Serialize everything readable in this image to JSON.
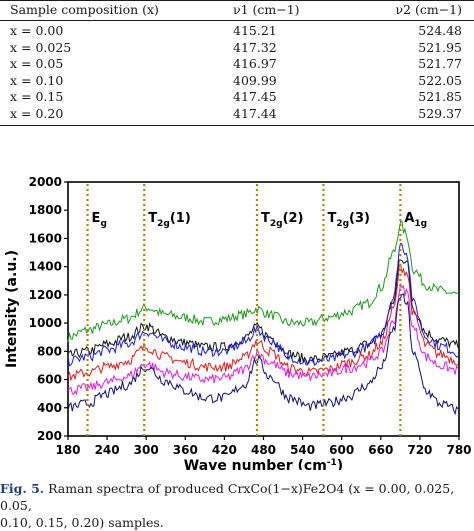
{
  "table": {
    "headers": [
      "Sample composition (x)",
      "ν1 (cm−1)",
      "ν2 (cm−1)"
    ],
    "rows": [
      [
        "x = 0.00",
        "415.21",
        "524.48"
      ],
      [
        "x = 0.025",
        "417.32",
        "521.95"
      ],
      [
        "x = 0.05",
        "416.97",
        "521.77"
      ],
      [
        "x = 0.10",
        "409.99",
        "522.05"
      ],
      [
        "x = 0.15",
        "417.45",
        "521.85"
      ],
      [
        "x = 0.20",
        "417.44",
        "529.37"
      ]
    ]
  },
  "chart_data": {
    "type": "line",
    "xlabel": "Wave number (cm⁻¹)",
    "ylabel": "Intensity (a.u.)",
    "xlim": [
      180,
      780
    ],
    "ylim": [
      200,
      2000
    ],
    "xticks": [
      180,
      240,
      300,
      360,
      420,
      480,
      540,
      600,
      660,
      720,
      780
    ],
    "yticks": [
      200,
      400,
      600,
      800,
      1000,
      1200,
      1400,
      1600,
      1800,
      2000
    ],
    "grid": false,
    "legend": "none",
    "mode_lines": [
      {
        "label": "Eg",
        "x": 210
      },
      {
        "label": "T2g(1)",
        "x": 297
      },
      {
        "label": "T2g(2)",
        "x": 470
      },
      {
        "label": "T2g(3)",
        "x": 572
      },
      {
        "label": "A1g",
        "x": 690
      }
    ],
    "series": [
      {
        "color": "#1d9a1d",
        "values": [
          [
            180,
            900
          ],
          [
            210,
            950
          ],
          [
            240,
            990
          ],
          [
            270,
            1030
          ],
          [
            300,
            1110
          ],
          [
            330,
            1060
          ],
          [
            360,
            1040
          ],
          [
            390,
            1010
          ],
          [
            420,
            1030
          ],
          [
            450,
            1060
          ],
          [
            470,
            1100
          ],
          [
            490,
            1060
          ],
          [
            520,
            1000
          ],
          [
            550,
            1000
          ],
          [
            580,
            1040
          ],
          [
            610,
            1080
          ],
          [
            640,
            1140
          ],
          [
            660,
            1250
          ],
          [
            680,
            1500
          ],
          [
            690,
            1700
          ],
          [
            700,
            1620
          ],
          [
            710,
            1380
          ],
          [
            730,
            1270
          ],
          [
            750,
            1230
          ],
          [
            780,
            1200
          ]
        ]
      },
      {
        "color": "#111111",
        "values": [
          [
            180,
            770
          ],
          [
            210,
            800
          ],
          [
            240,
            850
          ],
          [
            270,
            900
          ],
          [
            300,
            980
          ],
          [
            330,
            900
          ],
          [
            360,
            860
          ],
          [
            390,
            830
          ],
          [
            420,
            830
          ],
          [
            450,
            890
          ],
          [
            470,
            970
          ],
          [
            490,
            900
          ],
          [
            520,
            780
          ],
          [
            550,
            740
          ],
          [
            580,
            760
          ],
          [
            610,
            800
          ],
          [
            640,
            850
          ],
          [
            660,
            920
          ],
          [
            680,
            1150
          ],
          [
            690,
            1470
          ],
          [
            700,
            1430
          ],
          [
            710,
            1100
          ],
          [
            730,
            930
          ],
          [
            750,
            880
          ],
          [
            780,
            840
          ]
        ]
      },
      {
        "color": "#1a1ae6",
        "values": [
          [
            180,
            730
          ],
          [
            210,
            760
          ],
          [
            240,
            810
          ],
          [
            270,
            850
          ],
          [
            300,
            940
          ],
          [
            330,
            870
          ],
          [
            360,
            830
          ],
          [
            390,
            800
          ],
          [
            420,
            800
          ],
          [
            450,
            860
          ],
          [
            470,
            950
          ],
          [
            490,
            880
          ],
          [
            520,
            760
          ],
          [
            550,
            720
          ],
          [
            580,
            740
          ],
          [
            610,
            780
          ],
          [
            640,
            830
          ],
          [
            660,
            920
          ],
          [
            680,
            1180
          ],
          [
            690,
            1560
          ],
          [
            700,
            1500
          ],
          [
            710,
            1140
          ],
          [
            730,
            900
          ],
          [
            750,
            840
          ],
          [
            780,
            790
          ]
        ]
      },
      {
        "color": "#e61a1a",
        "values": [
          [
            180,
            620
          ],
          [
            210,
            650
          ],
          [
            240,
            690
          ],
          [
            270,
            730
          ],
          [
            300,
            830
          ],
          [
            330,
            760
          ],
          [
            360,
            720
          ],
          [
            390,
            690
          ],
          [
            420,
            690
          ],
          [
            450,
            750
          ],
          [
            470,
            870
          ],
          [
            490,
            800
          ],
          [
            520,
            680
          ],
          [
            550,
            650
          ],
          [
            580,
            670
          ],
          [
            610,
            720
          ],
          [
            640,
            770
          ],
          [
            660,
            850
          ],
          [
            680,
            1100
          ],
          [
            690,
            1400
          ],
          [
            700,
            1360
          ],
          [
            710,
            1060
          ],
          [
            730,
            840
          ],
          [
            750,
            780
          ],
          [
            780,
            730
          ]
        ]
      },
      {
        "color": "#e61ae6",
        "values": [
          [
            180,
            520
          ],
          [
            210,
            540
          ],
          [
            240,
            580
          ],
          [
            270,
            620
          ],
          [
            300,
            710
          ],
          [
            330,
            650
          ],
          [
            360,
            620
          ],
          [
            390,
            600
          ],
          [
            420,
            610
          ],
          [
            450,
            670
          ],
          [
            470,
            790
          ],
          [
            490,
            720
          ],
          [
            520,
            640
          ],
          [
            550,
            620
          ],
          [
            580,
            640
          ],
          [
            610,
            680
          ],
          [
            640,
            720
          ],
          [
            660,
            790
          ],
          [
            680,
            1010
          ],
          [
            690,
            1250
          ],
          [
            700,
            1220
          ],
          [
            710,
            960
          ],
          [
            730,
            760
          ],
          [
            750,
            700
          ],
          [
            780,
            660
          ]
        ]
      },
      {
        "color": "#0f0f6e",
        "values": [
          [
            180,
            400
          ],
          [
            210,
            430
          ],
          [
            240,
            500
          ],
          [
            270,
            560
          ],
          [
            300,
            690
          ],
          [
            330,
            590
          ],
          [
            360,
            520
          ],
          [
            390,
            470
          ],
          [
            420,
            470
          ],
          [
            450,
            560
          ],
          [
            470,
            740
          ],
          [
            490,
            620
          ],
          [
            520,
            470
          ],
          [
            550,
            410
          ],
          [
            580,
            430
          ],
          [
            610,
            480
          ],
          [
            640,
            560
          ],
          [
            660,
            680
          ],
          [
            680,
            950
          ],
          [
            690,
            1200
          ],
          [
            700,
            1140
          ],
          [
            710,
            780
          ],
          [
            730,
            520
          ],
          [
            750,
            430
          ],
          [
            780,
            380
          ]
        ]
      }
    ]
  },
  "caption": {
    "fig_label": "Fig. 5.",
    "text_line1": "Raman spectra of produced CrxCo(1−x)Fe2O4 (x = 0.00, 0.025, 0.05,",
    "text_line2": "0.10, 0.15, 0.20) samples."
  }
}
